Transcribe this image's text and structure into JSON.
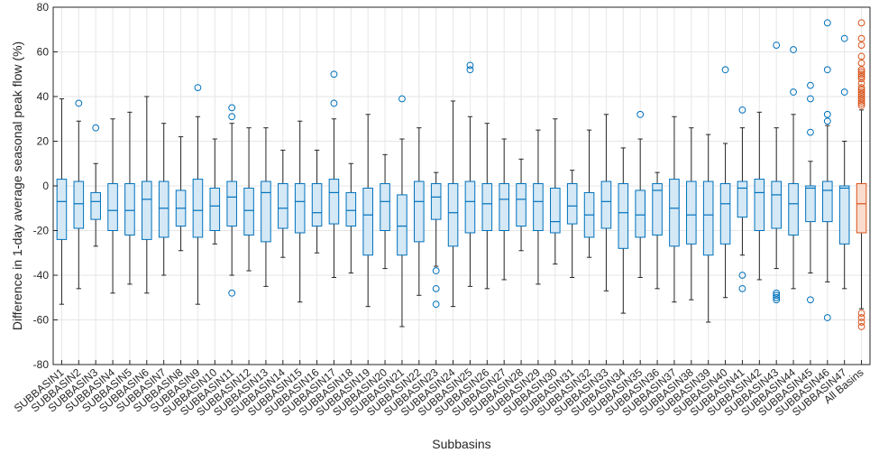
{
  "chart_data": {
    "type": "boxplot",
    "xlabel": "Subbasins",
    "ylabel": "Difference in 1-day average seasonal peak flow (%)",
    "ylim": [
      -80,
      80
    ],
    "yticks": [
      -80,
      -60,
      -40,
      -20,
      0,
      20,
      40,
      60,
      80
    ],
    "grid": true,
    "colors": {
      "subbasin": "#0072BD",
      "subbasin_fill": "#d4e8f5",
      "all": "#D95319",
      "all_fill": "#f9dccd",
      "whisker": "#262626",
      "grid": "#e6e6e6"
    },
    "categories": [
      "SUBBASIN1",
      "SUBBASIN2",
      "SUBBASIN3",
      "SUBBASIN4",
      "SUBBASIN5",
      "SUBBASIN6",
      "SUBBASIN7",
      "SUBBASIN8",
      "SUBBASIN9",
      "SUBBASIN10",
      "SUBBASIN11",
      "SUBBASIN12",
      "SUBBASIN13",
      "SUBBASIN14",
      "SUBBASIN15",
      "SUBBASIN16",
      "SUBBASIN17",
      "SUBBASIN18",
      "SUBBASIN19",
      "SUBBASIN20",
      "SUBBASIN21",
      "SUBBASIN22",
      "SUBBASIN23",
      "SUBBASIN24",
      "SUBBASIN25",
      "SUBBASIN26",
      "SUBBASIN27",
      "SUBBASIN28",
      "SUBBASIN29",
      "SUBBASIN30",
      "SUBBASIN31",
      "SUBBASIN32",
      "SUBBASIN33",
      "SUBBASIN34",
      "SUBBASIN35",
      "SUBBASIN36",
      "SUBBASIN37",
      "SUBBASIN38",
      "SUBBASIN39",
      "SUBBASIN40",
      "SUBBASIN41",
      "SUBBASIN42",
      "SUBBASIN43",
      "SUBBASIN44",
      "SUBBASIN45",
      "SUBBASIN46",
      "SUBBASIN47",
      "All Basins"
    ],
    "boxes": [
      {
        "whislo": -53,
        "q1": -24,
        "med": -7,
        "q3": 3,
        "whishi": 39,
        "fliers": []
      },
      {
        "whislo": -46,
        "q1": -19,
        "med": -8,
        "q3": 2,
        "whishi": 29,
        "fliers": [
          37
        ]
      },
      {
        "whislo": -27,
        "q1": -15,
        "med": -7,
        "q3": -3,
        "whishi": 10,
        "fliers": [
          26
        ]
      },
      {
        "whislo": -48,
        "q1": -20,
        "med": -11,
        "q3": 1,
        "whishi": 30,
        "fliers": []
      },
      {
        "whislo": -44,
        "q1": -22,
        "med": -11,
        "q3": 1,
        "whishi": 33,
        "fliers": []
      },
      {
        "whislo": -48,
        "q1": -24,
        "med": -6,
        "q3": 2,
        "whishi": 40,
        "fliers": []
      },
      {
        "whislo": -40,
        "q1": -23,
        "med": -10,
        "q3": 2,
        "whishi": 28,
        "fliers": []
      },
      {
        "whislo": -29,
        "q1": -18,
        "med": -10,
        "q3": -2,
        "whishi": 22,
        "fliers": []
      },
      {
        "whislo": -53,
        "q1": -23,
        "med": -11,
        "q3": 3,
        "whishi": 31,
        "fliers": [
          44
        ]
      },
      {
        "whislo": -26,
        "q1": -20,
        "med": -9,
        "q3": -1,
        "whishi": 21,
        "fliers": []
      },
      {
        "whislo": -40,
        "q1": -18,
        "med": -5,
        "q3": 2,
        "whishi": 28,
        "fliers": [
          35,
          31,
          -48
        ]
      },
      {
        "whislo": -38,
        "q1": -22,
        "med": -11,
        "q3": -1,
        "whishi": 26,
        "fliers": []
      },
      {
        "whislo": -45,
        "q1": -25,
        "med": -3,
        "q3": 2,
        "whishi": 26,
        "fliers": []
      },
      {
        "whislo": -32,
        "q1": -19,
        "med": -10,
        "q3": 1,
        "whishi": 16,
        "fliers": []
      },
      {
        "whislo": -52,
        "q1": -21,
        "med": -7,
        "q3": 1,
        "whishi": 29,
        "fliers": []
      },
      {
        "whislo": -30,
        "q1": -18,
        "med": -12,
        "q3": 1,
        "whishi": 16,
        "fliers": []
      },
      {
        "whislo": -41,
        "q1": -17,
        "med": -3,
        "q3": 3,
        "whishi": 30,
        "fliers": [
          50,
          37
        ]
      },
      {
        "whislo": -39,
        "q1": -18,
        "med": -11,
        "q3": -3,
        "whishi": 10,
        "fliers": []
      },
      {
        "whislo": -54,
        "q1": -31,
        "med": -13,
        "q3": -1,
        "whishi": 32,
        "fliers": []
      },
      {
        "whislo": -37,
        "q1": -20,
        "med": -7,
        "q3": 1,
        "whishi": 14,
        "fliers": []
      },
      {
        "whislo": -63,
        "q1": -31,
        "med": -18,
        "q3": -4,
        "whishi": 21,
        "fliers": [
          39
        ]
      },
      {
        "whislo": -49,
        "q1": -25,
        "med": -7,
        "q3": 2,
        "whishi": 26,
        "fliers": []
      },
      {
        "whislo": -36,
        "q1": -15,
        "med": -5,
        "q3": 1,
        "whishi": 6,
        "fliers": [
          -38,
          -46,
          -53
        ]
      },
      {
        "whislo": -54,
        "q1": -27,
        "med": -12,
        "q3": 1,
        "whishi": 38,
        "fliers": []
      },
      {
        "whislo": -45,
        "q1": -21,
        "med": -7,
        "q3": 2,
        "whishi": 31,
        "fliers": [
          54,
          52
        ]
      },
      {
        "whislo": -46,
        "q1": -20,
        "med": -8,
        "q3": 1,
        "whishi": 28,
        "fliers": []
      },
      {
        "whislo": -42,
        "q1": -20,
        "med": -6,
        "q3": 1,
        "whishi": 21,
        "fliers": []
      },
      {
        "whislo": -29,
        "q1": -18,
        "med": -6,
        "q3": 1,
        "whishi": 12,
        "fliers": []
      },
      {
        "whislo": -44,
        "q1": -20,
        "med": -7,
        "q3": 1,
        "whishi": 25,
        "fliers": []
      },
      {
        "whislo": -35,
        "q1": -21,
        "med": -16,
        "q3": -1,
        "whishi": 30,
        "fliers": []
      },
      {
        "whislo": -41,
        "q1": -17,
        "med": -9,
        "q3": 1,
        "whishi": 7,
        "fliers": []
      },
      {
        "whislo": -32,
        "q1": -23,
        "med": -13,
        "q3": -3,
        "whishi": 25,
        "fliers": []
      },
      {
        "whislo": -47,
        "q1": -19,
        "med": -7,
        "q3": 2,
        "whishi": 32,
        "fliers": []
      },
      {
        "whislo": -57,
        "q1": -28,
        "med": -12,
        "q3": 1,
        "whishi": 17,
        "fliers": []
      },
      {
        "whislo": -41,
        "q1": -23,
        "med": -13,
        "q3": -2,
        "whishi": 21,
        "fliers": [
          32
        ]
      },
      {
        "whislo": -46,
        "q1": -22,
        "med": -2,
        "q3": 1,
        "whishi": 6,
        "fliers": []
      },
      {
        "whislo": -52,
        "q1": -27,
        "med": -10,
        "q3": 3,
        "whishi": 31,
        "fliers": []
      },
      {
        "whislo": -51,
        "q1": -26,
        "med": -13,
        "q3": 2,
        "whishi": 26,
        "fliers": []
      },
      {
        "whislo": -61,
        "q1": -31,
        "med": -13,
        "q3": 2,
        "whishi": 23,
        "fliers": []
      },
      {
        "whislo": -50,
        "q1": -26,
        "med": -8,
        "q3": 1,
        "whishi": 19,
        "fliers": [
          52
        ]
      },
      {
        "whislo": -31,
        "q1": -14,
        "med": -1,
        "q3": 2,
        "whishi": 26,
        "fliers": [
          34,
          -40,
          -46
        ]
      },
      {
        "whislo": -42,
        "q1": -20,
        "med": -3,
        "q3": 3,
        "whishi": 33,
        "fliers": []
      },
      {
        "whislo": -37,
        "q1": -19,
        "med": -4,
        "q3": 2,
        "whishi": 26,
        "fliers": [
          63,
          -48,
          -49,
          -50,
          -51
        ]
      },
      {
        "whislo": -46,
        "q1": -22,
        "med": -8,
        "q3": 1,
        "whishi": 32,
        "fliers": [
          61,
          42
        ]
      },
      {
        "whislo": -39,
        "q1": -16,
        "med": -1,
        "q3": 0,
        "whishi": 11,
        "fliers": [
          45,
          39,
          24,
          -51
        ]
      },
      {
        "whislo": -43,
        "q1": -16,
        "med": -2,
        "q3": 2,
        "whishi": 27,
        "fliers": [
          73,
          52,
          32,
          29,
          -59
        ]
      },
      {
        "whislo": -46,
        "q1": -26,
        "med": -1,
        "q3": 0,
        "whishi": 20,
        "fliers": [
          66,
          42
        ]
      },
      {
        "whislo": -55,
        "q1": -21,
        "med": -8,
        "q3": 1,
        "whishi": 34,
        "fliers": [
          73,
          66,
          63,
          58,
          55,
          52,
          51,
          50,
          49,
          48,
          46,
          44,
          43,
          42,
          41,
          40,
          39,
          38,
          37,
          36,
          -57,
          -59,
          -61,
          -63
        ]
      }
    ]
  }
}
